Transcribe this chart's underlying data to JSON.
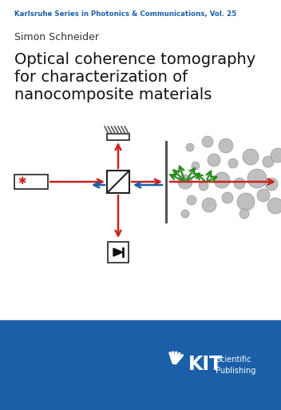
{
  "series_title": "Karlsruhe Series in Photonics & Communications, Vol. 25",
  "author": "Simon Schneider",
  "title_line1": "Optical coherence tomography",
  "title_line2": "for characterization of",
  "title_line3": "nanocomposite materials",
  "series_color": "#1a5fa8",
  "author_color": "#333333",
  "title_color": "#111111",
  "bg_color": "#ffffff",
  "footer_color": "#1a5fa8",
  "kit_text_color": "#ffffff",
  "arrow_red": "#cc2222",
  "arrow_blue": "#1a5fa8",
  "arrow_green": "#2a8a20",
  "line_color": "#222222",
  "circle_color": "#b8b8b8",
  "circle_edge": "#909090",
  "hatch_color": "#555555",
  "detector_color": "#111111"
}
